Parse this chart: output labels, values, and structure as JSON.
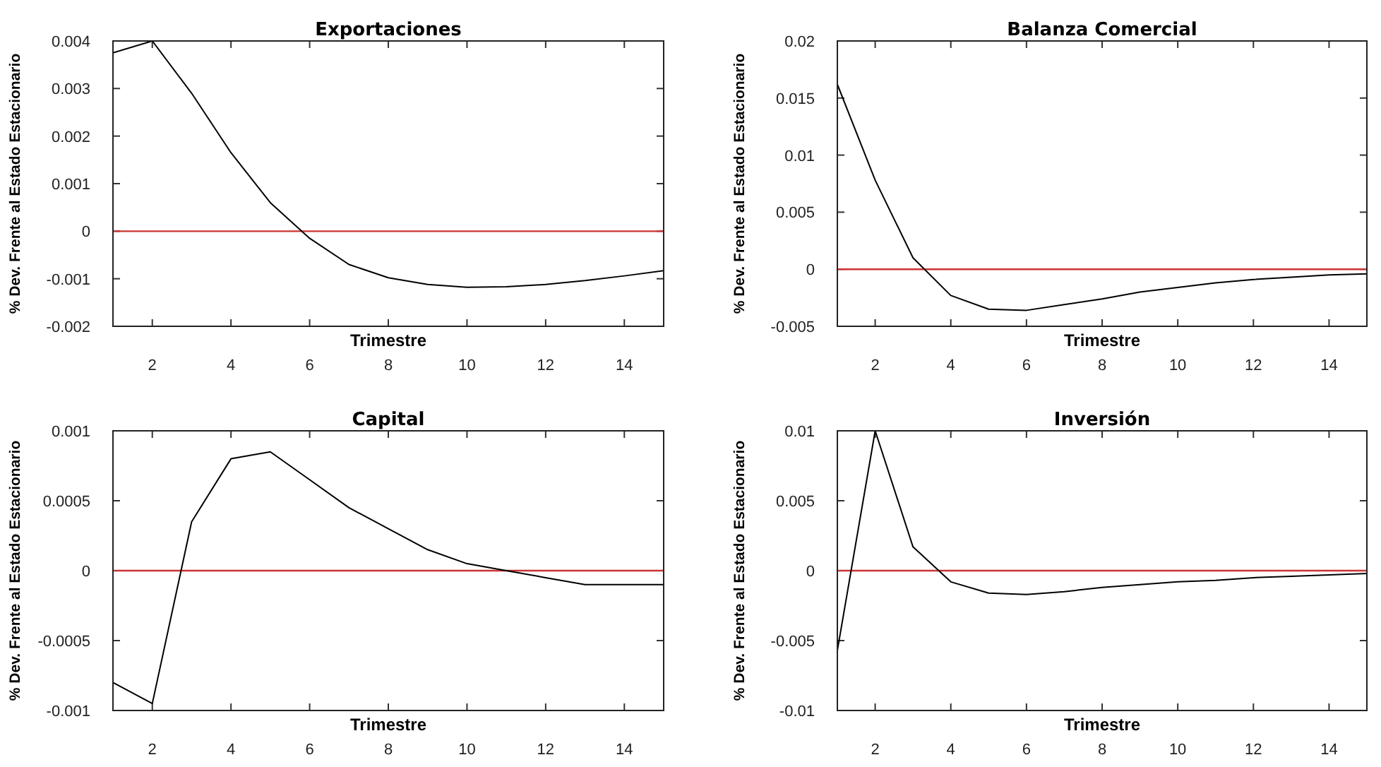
{
  "chart_data": [
    {
      "type": "line",
      "title": "Exportaciones",
      "xlabel": "Trimestre",
      "ylabel": "% Dev. Frente al Estado Estacionario",
      "x": [
        1,
        2,
        3,
        4,
        5,
        6,
        7,
        8,
        9,
        10,
        11,
        12,
        13,
        14,
        15
      ],
      "color": "#000000",
      "values": [
        0.00375,
        0.004,
        0.0029,
        0.00165,
        0.0006,
        -0.00015,
        -0.0007,
        -0.00098,
        -0.00112,
        -0.00118,
        -0.00117,
        -0.00112,
        -0.00104,
        -0.00094,
        -0.00083
      ],
      "xlim": [
        1,
        15
      ],
      "xticks": [
        2,
        4,
        6,
        8,
        10,
        12,
        14
      ],
      "ylim": [
        -0.002,
        0.004
      ],
      "yticks": [
        -0.002,
        -0.001,
        0,
        0.001,
        0.002,
        0.003,
        0.004
      ],
      "ref_lines": [
        {
          "axis": "y",
          "value": 0,
          "color": "#cc3333"
        }
      ]
    },
    {
      "type": "line",
      "title": "Balanza Comercial",
      "xlabel": "Trimestre",
      "ylabel": "% Dev. Frente al Estado Estacionario",
      "x": [
        1,
        2,
        3,
        4,
        5,
        6,
        7,
        8,
        9,
        10,
        11,
        12,
        13,
        14,
        15
      ],
      "color": "#000000",
      "values": [
        0.0162,
        0.0078,
        0.001,
        -0.0023,
        -0.0035,
        -0.0036,
        -0.0031,
        -0.0026,
        -0.002,
        -0.0016,
        -0.0012,
        -0.0009,
        -0.0007,
        -0.0005,
        -0.0004
      ],
      "xlim": [
        1,
        15
      ],
      "xticks": [
        2,
        4,
        6,
        8,
        10,
        12,
        14
      ],
      "ylim": [
        -0.005,
        0.02
      ],
      "yticks": [
        -0.005,
        0,
        0.005,
        0.01,
        0.015,
        0.02
      ],
      "ref_lines": [
        {
          "axis": "y",
          "value": 0,
          "color": "#cc3333"
        }
      ]
    },
    {
      "type": "line",
      "title": "Capital",
      "xlabel": "Trimestre",
      "ylabel": "% Dev. Frente al Estado Estacionario",
      "x": [
        1,
        2,
        3,
        4,
        5,
        6,
        7,
        8,
        9,
        10,
        11,
        12,
        13,
        14,
        15
      ],
      "color": "#000000",
      "values": [
        -0.0008,
        -0.00095,
        0.00035,
        0.0008,
        0.00085,
        0.00065,
        0.00045,
        0.0003,
        0.00015,
        5e-05,
        0,
        -5e-05,
        -0.0001,
        -0.0001,
        -0.0001
      ],
      "xlim": [
        1,
        15
      ],
      "xticks": [
        2,
        4,
        6,
        8,
        10,
        12,
        14
      ],
      "ylim": [
        -0.001,
        0.001
      ],
      "yticks": [
        -0.001,
        -0.0005,
        0,
        0.0005,
        0.001
      ],
      "ref_lines": [
        {
          "axis": "y",
          "value": 0,
          "color": "#cc3333"
        }
      ]
    },
    {
      "type": "line",
      "title": "Inversión",
      "xlabel": "Trimestre",
      "ylabel": "% Dev. Frente al Estado Estacionario",
      "x": [
        1,
        2,
        3,
        4,
        5,
        6,
        7,
        8,
        9,
        10,
        11,
        12,
        13,
        14,
        15
      ],
      "color": "#000000",
      "values": [
        -0.0057,
        0.01,
        0.0017,
        -0.0008,
        -0.0016,
        -0.0017,
        -0.0015,
        -0.0012,
        -0.001,
        -0.0008,
        -0.0007,
        -0.0005,
        -0.0004,
        -0.0003,
        -0.0002
      ],
      "xlim": [
        1,
        15
      ],
      "xticks": [
        2,
        4,
        6,
        8,
        10,
        12,
        14
      ],
      "ylim": [
        -0.01,
        0.01
      ],
      "yticks": [
        -0.01,
        -0.005,
        0,
        0.005,
        0.01
      ],
      "ref_lines": [
        {
          "axis": "y",
          "value": 0,
          "color": "#cc3333"
        }
      ]
    }
  ]
}
